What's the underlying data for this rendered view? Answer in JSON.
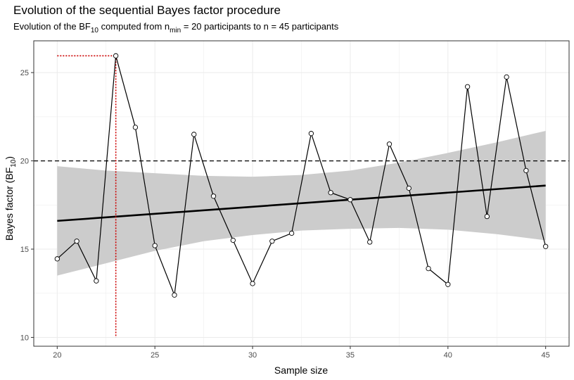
{
  "chart_data": {
    "type": "line",
    "title": "Evolution of the sequential Bayes factor procedure",
    "subtitle": {
      "prefix": "Evolution of the  BF",
      "bf_sub": "10",
      "middle": " computed from n",
      "n_sub": "min",
      "suffix": " = 20 participants to n = 45 participants"
    },
    "xlabel": "Sample size",
    "ylabel": {
      "text": "Bayes factor (BF",
      "sub": "10",
      "close": ")"
    },
    "xlim": [
      18.8,
      46.2
    ],
    "ylim": [
      9.5,
      26.8
    ],
    "xticks": [
      20,
      25,
      30,
      35,
      40,
      45
    ],
    "yticks": [
      10,
      15,
      20,
      25
    ],
    "grid": true,
    "series": [
      {
        "x": [
          20,
          21,
          22,
          23,
          24,
          25,
          26,
          27,
          28,
          29,
          30,
          31,
          32,
          33,
          34,
          35,
          36,
          37,
          38,
          39,
          40,
          41,
          42,
          43,
          44,
          45
        ],
        "y": [
          14.45,
          15.45,
          13.2,
          25.95,
          21.9,
          15.2,
          12.4,
          21.5,
          18.0,
          15.5,
          13.05,
          15.45,
          15.9,
          21.55,
          18.2,
          17.8,
          15.4,
          20.95,
          18.45,
          13.9,
          13.0,
          24.2,
          16.85,
          24.75,
          19.45,
          15.15
        ]
      }
    ],
    "trend": {
      "x": [
        20,
        45
      ],
      "y": [
        16.6,
        18.6
      ]
    },
    "confidence_band": {
      "x": [
        20,
        22.5,
        25,
        27.5,
        30,
        32.5,
        35,
        37.5,
        40,
        42.5,
        45
      ],
      "upper": [
        19.7,
        19.45,
        19.3,
        19.15,
        19.1,
        19.2,
        19.45,
        19.9,
        20.45,
        21.05,
        21.7
      ],
      "lower": [
        13.5,
        14.2,
        14.9,
        15.45,
        15.8,
        16.05,
        16.15,
        16.2,
        16.1,
        15.85,
        15.5
      ]
    },
    "threshold": 20,
    "highlight": {
      "x": 23,
      "y": 25.95
    },
    "colors": {
      "line": "#000000",
      "trend": "#000000",
      "band": "#cccccc",
      "highlight": "#cc0000",
      "points": "#ffffff",
      "grid": "#ebebeb",
      "border": "#333333"
    }
  }
}
